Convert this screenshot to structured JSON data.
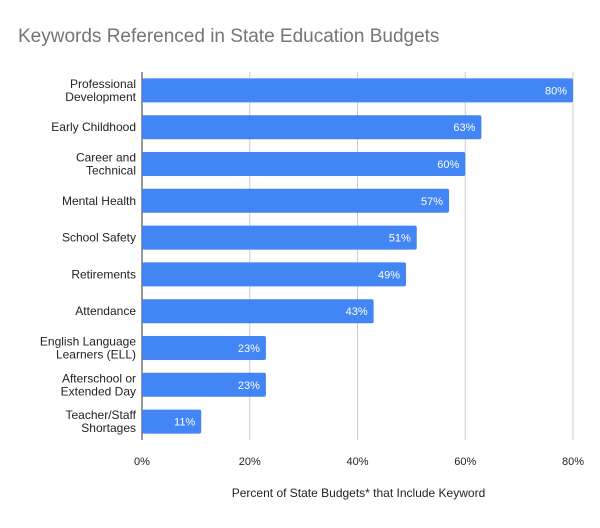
{
  "chart_data": {
    "type": "bar",
    "orientation": "horizontal",
    "title": "Keywords Referenced in State Education Budgets",
    "xlabel": "Percent of State Budgets* that Include Keyword",
    "ylabel": "",
    "categories": [
      [
        "Professional",
        "Development"
      ],
      [
        "Early Childhood"
      ],
      [
        "Career and",
        "Technical"
      ],
      [
        "Mental Health"
      ],
      [
        "School Safety"
      ],
      [
        "Retirements"
      ],
      [
        "Attendance"
      ],
      [
        "English Language",
        "Learners (ELL)"
      ],
      [
        "Afterschool or",
        "Extended Day"
      ],
      [
        "Teacher/Staff",
        "Shortages"
      ]
    ],
    "values": [
      80,
      63,
      60,
      57,
      51,
      49,
      43,
      23,
      23,
      11
    ],
    "data_labels": [
      "80%",
      "63%",
      "60%",
      "57%",
      "51%",
      "49%",
      "43%",
      "23%",
      "23%",
      "11%"
    ],
    "xlim": [
      0,
      80
    ],
    "x_ticks": [
      0,
      20,
      40,
      60,
      80
    ],
    "x_tick_labels": [
      "0%",
      "20%",
      "40%",
      "60%",
      "80%"
    ],
    "grid": true,
    "legend": "none",
    "colors": {
      "bar": "#4285f4",
      "grid": "#cccccc",
      "axis": "#333333",
      "title": "#757575",
      "data_label": "#ffffff",
      "text": "#222222"
    }
  }
}
